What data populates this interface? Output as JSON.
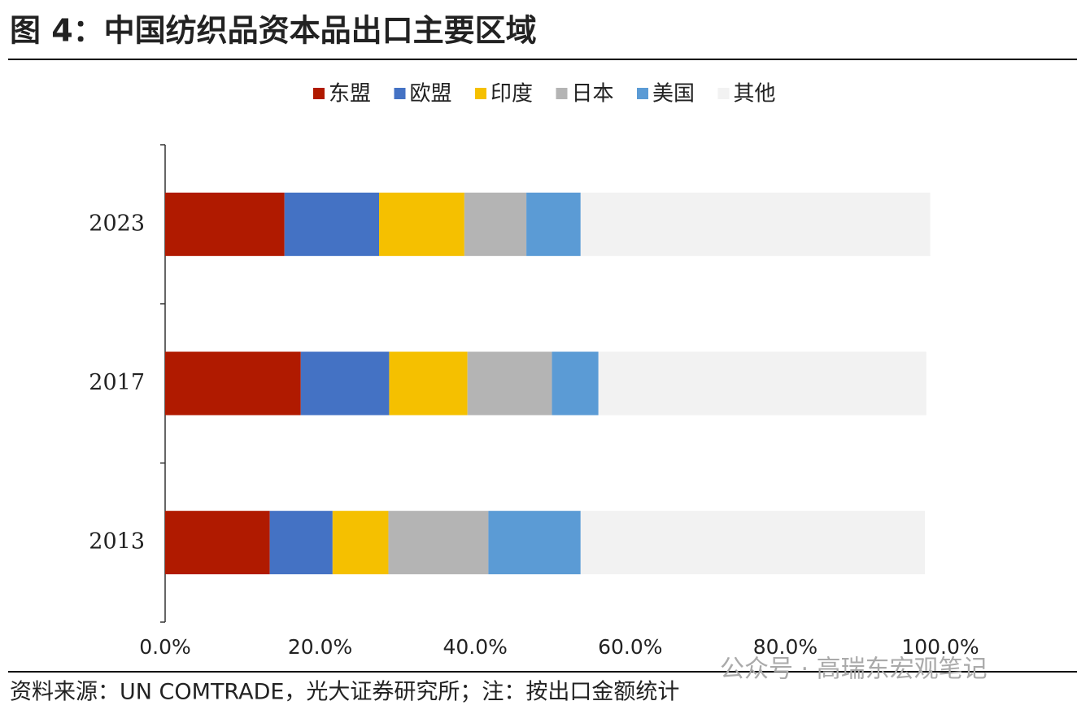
{
  "chart_data": {
    "type": "stacked-bar-horizontal",
    "title": "图 4：中国纺织品资本品出口主要区域",
    "source": "资料来源：UN COMTRADE，光大证券研究所；注：按出口金额统计",
    "watermark": "公众号 · 高瑞东宏观笔记",
    "categories": [
      "2013",
      "2017",
      "2023"
    ],
    "series": [
      {
        "name": "东盟",
        "color": "#b01a00",
        "values": [
          13.5,
          17.5,
          15.4
        ]
      },
      {
        "name": "欧盟",
        "color": "#4472c4",
        "values": [
          8.1,
          11.4,
          12.2
        ]
      },
      {
        "name": "印度",
        "color": "#f5c000",
        "values": [
          7.2,
          10.1,
          11.0
        ]
      },
      {
        "name": "日本",
        "color": "#b4b4b4",
        "values": [
          12.9,
          10.9,
          8.0
        ]
      },
      {
        "name": "美国",
        "color": "#5b9bd5",
        "values": [
          11.9,
          6.0,
          7.0
        ]
      },
      {
        "name": "其他",
        "color": "#f2f2f2",
        "values": [
          44.4,
          42.3,
          45.1
        ]
      }
    ],
    "xlim": [
      0,
      100
    ],
    "xticks": [
      {
        "value": 0,
        "label": "0.0%"
      },
      {
        "value": 20,
        "label": "20.0%"
      },
      {
        "value": 40,
        "label": "40.0%"
      },
      {
        "value": 60,
        "label": "60.0%"
      },
      {
        "value": 80,
        "label": "80.0%"
      },
      {
        "value": 100,
        "label": "100.0%"
      }
    ],
    "legend": "top",
    "grid": false
  }
}
